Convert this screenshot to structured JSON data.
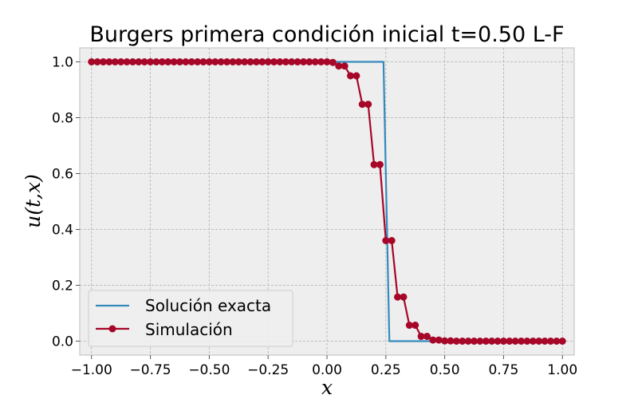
{
  "chart_data": {
    "type": "line",
    "title": "Burgers primera condición inicial t=0.50 L-F",
    "xlabel": "x",
    "ylabel": "u(t,x)",
    "xlim": [
      -1.05,
      1.05
    ],
    "ylim": [
      -0.05,
      1.05
    ],
    "x_ticks": [
      -1.0,
      -0.75,
      -0.5,
      -0.25,
      0.0,
      0.25,
      0.5,
      0.75,
      1.0
    ],
    "x_tick_labels": [
      "−1.00",
      "−0.75",
      "−0.50",
      "−0.25",
      "0.00",
      "0.25",
      "0.50",
      "0.75",
      "1.00"
    ],
    "y_ticks": [
      0.0,
      0.2,
      0.4,
      0.6,
      0.8,
      1.0
    ],
    "y_tick_labels": [
      "0.0",
      "0.2",
      "0.4",
      "0.6",
      "0.8",
      "1.0"
    ],
    "grid": true,
    "legend_position": "lower-left",
    "series": [
      {
        "name": "Solución exacta",
        "color": "#348abd",
        "marker": "none",
        "x": [
          -1.0,
          0.24,
          0.265,
          1.0
        ],
        "y": [
          1.0,
          1.0,
          0.0,
          0.0
        ]
      },
      {
        "name": "Simulación",
        "color": "#a60628",
        "marker": "circle",
        "x": [
          -1.0,
          -0.975,
          -0.95,
          -0.925,
          -0.9,
          -0.875,
          -0.85,
          -0.825,
          -0.8,
          -0.775,
          -0.75,
          -0.725,
          -0.7,
          -0.675,
          -0.65,
          -0.625,
          -0.6,
          -0.575,
          -0.55,
          -0.525,
          -0.5,
          -0.475,
          -0.45,
          -0.425,
          -0.4,
          -0.375,
          -0.35,
          -0.325,
          -0.3,
          -0.275,
          -0.25,
          -0.225,
          -0.2,
          -0.175,
          -0.15,
          -0.125,
          -0.1,
          -0.075,
          -0.05,
          -0.025,
          0.0,
          0.025,
          0.05,
          0.075,
          0.1,
          0.125,
          0.15,
          0.175,
          0.2,
          0.225,
          0.25,
          0.275,
          0.3,
          0.325,
          0.35,
          0.375,
          0.4,
          0.425,
          0.45,
          0.475,
          0.5,
          0.525,
          0.55,
          0.575,
          0.6,
          0.625,
          0.65,
          0.675,
          0.7,
          0.725,
          0.75,
          0.775,
          0.8,
          0.825,
          0.85,
          0.875,
          0.9,
          0.925,
          0.95,
          0.975,
          1.0
        ],
        "y": [
          1.0,
          1.0,
          1.0,
          1.0,
          1.0,
          1.0,
          1.0,
          1.0,
          1.0,
          1.0,
          1.0,
          1.0,
          1.0,
          1.0,
          1.0,
          1.0,
          1.0,
          1.0,
          1.0,
          1.0,
          1.0,
          1.0,
          1.0,
          1.0,
          1.0,
          1.0,
          1.0,
          1.0,
          1.0,
          1.0,
          1.0,
          1.0,
          1.0,
          1.0,
          1.0,
          1.0,
          1.0,
          1.0,
          1.0,
          1.0,
          1.0,
          0.998,
          0.985,
          0.985,
          0.95,
          0.95,
          0.848,
          0.848,
          0.632,
          0.632,
          0.36,
          0.36,
          0.158,
          0.158,
          0.057,
          0.057,
          0.017,
          0.017,
          0.004,
          0.004,
          0.001,
          0.001,
          0.0,
          0.0,
          0.0,
          0.0,
          0.0,
          0.0,
          0.0,
          0.0,
          0.0,
          0.0,
          0.0,
          0.0,
          0.0,
          0.0,
          0.0,
          0.0,
          0.0,
          0.0,
          0.0
        ]
      }
    ]
  }
}
